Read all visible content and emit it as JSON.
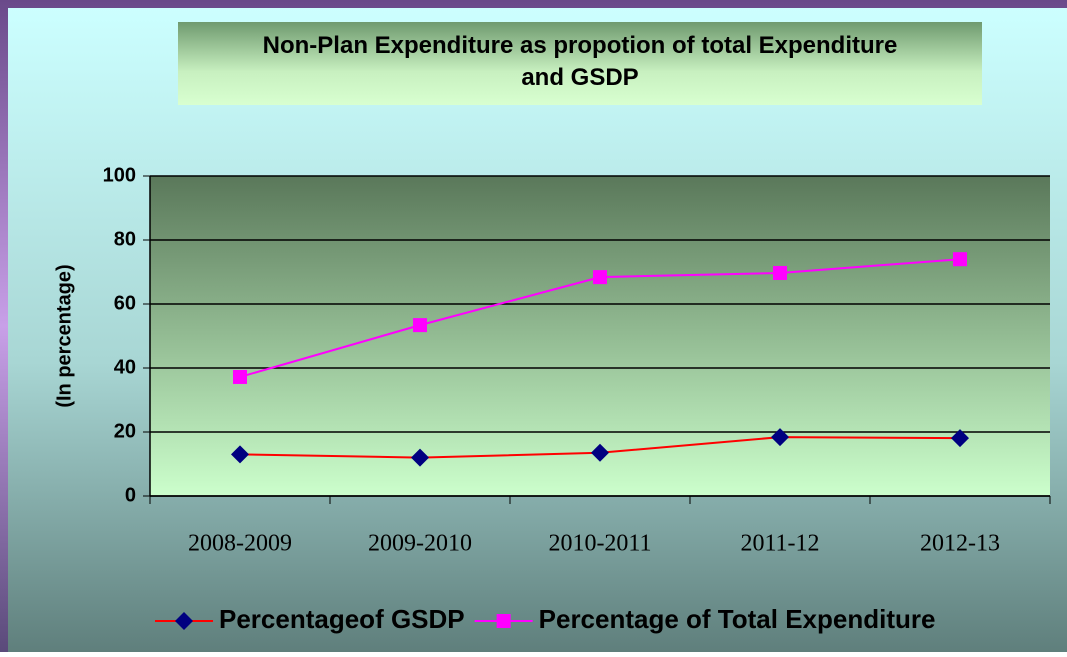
{
  "chart_data": {
    "type": "line",
    "title": "Non-Plan Expenditure as propotion of total Expenditure and GSDP",
    "y_label": "(In percentage)",
    "categories": [
      "2008-2009",
      "2009-2010",
      "2010-2011",
      "2011-12",
      "2012-13"
    ],
    "series": [
      {
        "name": "Percentageof GSDP",
        "color": "#000080",
        "line_color": "#ff0000",
        "marker": "diamond",
        "values": [
          13,
          12,
          13.5,
          18.4,
          18.1
        ]
      },
      {
        "name": "Percentage of Total Expenditure",
        "color": "#ff00ff",
        "line_color": "#ff00ff",
        "marker": "square",
        "values": [
          37.2,
          53.4,
          68.4,
          69.7,
          74
        ]
      }
    ],
    "ylim": [
      0,
      100
    ],
    "yticks": [
      0,
      20,
      40,
      60,
      80,
      100
    ],
    "grid": true,
    "legend": "bottom"
  }
}
